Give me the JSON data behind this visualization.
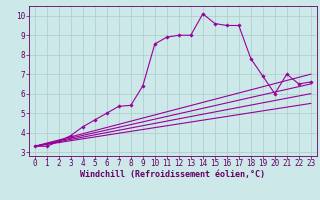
{
  "title": "",
  "xlabel": "Windchill (Refroidissement éolien,°C)",
  "ylabel": "",
  "bg_color": "#cce8e8",
  "grid_color": "#aacccc",
  "line_color": "#990099",
  "label_color": "#660066",
  "xlim": [
    -0.5,
    23.5
  ],
  "ylim": [
    2.8,
    10.5
  ],
  "xticks": [
    0,
    1,
    2,
    3,
    4,
    5,
    6,
    7,
    8,
    9,
    10,
    11,
    12,
    13,
    14,
    15,
    16,
    17,
    18,
    19,
    20,
    21,
    22,
    23
  ],
  "yticks": [
    3,
    4,
    5,
    6,
    7,
    8,
    9,
    10
  ],
  "main_x": [
    0,
    1,
    2,
    3,
    4,
    5,
    6,
    7,
    8,
    9,
    10,
    11,
    12,
    13,
    14,
    15,
    16,
    17,
    18,
    19,
    20,
    21,
    22,
    23
  ],
  "main_y": [
    3.3,
    3.3,
    3.55,
    3.85,
    4.3,
    4.65,
    5.0,
    5.35,
    5.4,
    6.4,
    8.55,
    8.9,
    9.0,
    9.0,
    10.1,
    9.6,
    9.5,
    9.5,
    7.8,
    6.9,
    6.0,
    7.0,
    6.5,
    6.6
  ],
  "smooth_lines": [
    {
      "x": [
        0,
        23
      ],
      "y": [
        3.3,
        7.0
      ]
    },
    {
      "x": [
        0,
        23
      ],
      "y": [
        3.3,
        6.5
      ]
    },
    {
      "x": [
        0,
        23
      ],
      "y": [
        3.3,
        6.0
      ]
    },
    {
      "x": [
        0,
        23
      ],
      "y": [
        3.3,
        5.5
      ]
    }
  ],
  "tick_fontsize": 5.5,
  "xlabel_fontsize": 6.0,
  "marker": "D",
  "markersize": 1.8,
  "linewidth": 0.8
}
